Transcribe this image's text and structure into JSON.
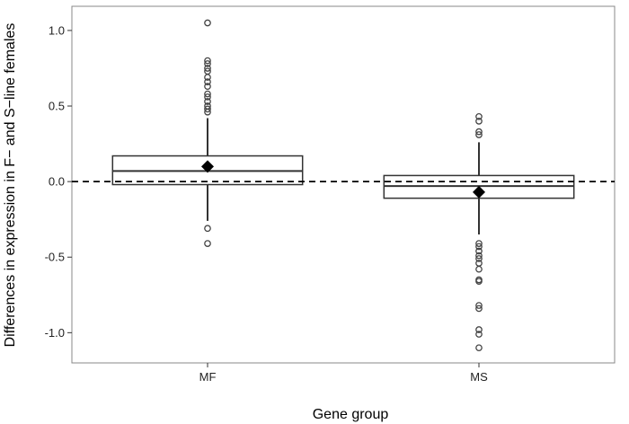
{
  "chart_data": {
    "type": "box",
    "title": "",
    "xlabel": "Gene group",
    "ylabel": "Differences in expression in F− and S−line females",
    "categories": [
      "MF",
      "MS"
    ],
    "ylim": [
      -1.2,
      1.16
    ],
    "yticks": [
      1.0,
      0.5,
      0.0,
      -0.5,
      -1.0
    ],
    "ytick_labels": [
      "1.0",
      "0.5",
      "0.0",
      "-0.5",
      "-1.0"
    ],
    "reference_line": {
      "y": 0.0,
      "style": "dashed"
    },
    "grid": false,
    "legend": "none",
    "boxes": [
      {
        "group": "MF",
        "q1": -0.02,
        "median": 0.07,
        "q3": 0.17,
        "whisker_low": -0.26,
        "whisker_high": 0.42,
        "mean": 0.1,
        "outliers": [
          1.05,
          0.8,
          0.78,
          0.75,
          0.73,
          0.69,
          0.66,
          0.63,
          0.58,
          0.56,
          0.53,
          0.5,
          0.48,
          0.46,
          -0.31,
          -0.41
        ]
      },
      {
        "group": "MS",
        "q1": -0.11,
        "median": -0.03,
        "q3": 0.04,
        "whisker_low": -0.35,
        "whisker_high": 0.26,
        "mean": -0.07,
        "outliers": [
          0.43,
          0.4,
          0.33,
          0.31,
          -0.41,
          -0.43,
          -0.46,
          -0.49,
          -0.51,
          -0.54,
          -0.58,
          -0.65,
          -0.66,
          -0.82,
          -0.84,
          -0.98,
          -1.01,
          -1.1
        ]
      }
    ],
    "colors": {
      "box_fill": "#ffffff",
      "box_stroke": "#333333",
      "outlier_stroke": "#444444",
      "mean_marker": "#000000",
      "panel_border": "#888888"
    }
  }
}
